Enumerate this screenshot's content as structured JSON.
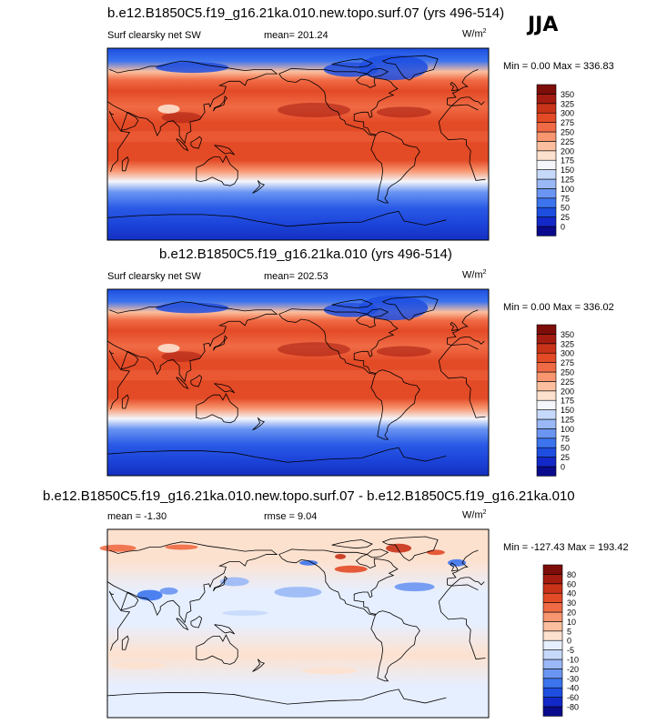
{
  "season": "JJA",
  "panels": [
    {
      "title": "b.e12.B1850C5.f19_g16.21ka.010.new.topo.surf.07 (yrs 496-514)",
      "left_label": "Surf clearsky net SW",
      "center_label": "mean= 201.24",
      "units": "W/m",
      "units_exp": "2",
      "minmax": "Min =   0.00 Max = 336.83"
    },
    {
      "title": "b.e12.B1850C5.f19_g16.21ka.010 (yrs 496-514)",
      "left_label": "Surf clearsky net SW",
      "center_label": "mean= 202.53",
      "units": "W/m",
      "units_exp": "2",
      "minmax": "Min =   0.00 Max = 336.02"
    },
    {
      "title": "b.e12.B1850C5.f19_g16.21ka.010.new.topo.surf.07 - b.e12.B1850C5.f19_g16.21ka.010",
      "left_label": "mean =  -1.30",
      "center_label": "rmse =   9.04",
      "units": "W/m",
      "units_exp": "2",
      "minmax": "Min = -127.43 Max = 193.42"
    }
  ],
  "chart_data": [
    {
      "type": "heatmap",
      "title": "b.e12.B1850C5.f19_g16.21ka.010.new.topo.surf.07 (yrs 496-514)",
      "variable": "Surf clearsky net SW",
      "units": "W/m2",
      "mean": 201.24,
      "min": 0.0,
      "max": 336.83,
      "colorbar_levels": [
        0,
        25,
        50,
        75,
        100,
        125,
        150,
        175,
        200,
        225,
        250,
        275,
        300,
        325,
        350
      ],
      "colorbar_colors": [
        "#0a0a8c",
        "#1328c8",
        "#1d4ee0",
        "#3c74ee",
        "#6a95f2",
        "#9ab8f6",
        "#c6d9fb",
        "#f4f6fb",
        "#fde1cf",
        "#fbbf9f",
        "#f7966f",
        "#f06b45",
        "#e34a26",
        "#c93318",
        "#a41c10",
        "#7d0d08"
      ],
      "gradient_lat": [
        -90,
        -75,
        -60,
        -45,
        -35,
        -25,
        -15,
        0,
        20,
        35,
        50,
        60,
        68,
        78,
        90
      ],
      "gradient_colors": [
        "#1330c0",
        "#1c44da",
        "#2a5ae6",
        "#6a95f2",
        "#f4f6fb",
        "#f7966f",
        "#e34a26",
        "#e34a26",
        "#e34a26",
        "#f06b45",
        "#e34a26",
        "#f06b45",
        "#fbbf9f",
        "#3c74ee",
        "#1d4ee0"
      ]
    },
    {
      "type": "heatmap",
      "title": "b.e12.B1850C5.f19_g16.21ka.010 (yrs 496-514)",
      "variable": "Surf clearsky net SW",
      "units": "W/m2",
      "mean": 202.53,
      "min": 0.0,
      "max": 336.02,
      "colorbar_levels": [
        0,
        25,
        50,
        75,
        100,
        125,
        150,
        175,
        200,
        225,
        250,
        275,
        300,
        325,
        350
      ],
      "colorbar_colors": [
        "#0a0a8c",
        "#1328c8",
        "#1d4ee0",
        "#3c74ee",
        "#6a95f2",
        "#9ab8f6",
        "#c6d9fb",
        "#f4f6fb",
        "#fde1cf",
        "#fbbf9f",
        "#f7966f",
        "#f06b45",
        "#e34a26",
        "#c93318",
        "#a41c10",
        "#7d0d08"
      ],
      "gradient_lat": [
        -90,
        -75,
        -60,
        -45,
        -35,
        -25,
        -15,
        0,
        20,
        35,
        50,
        60,
        68,
        78,
        90
      ],
      "gradient_colors": [
        "#1330c0",
        "#1c44da",
        "#2a5ae6",
        "#6a95f2",
        "#f4f6fb",
        "#f7966f",
        "#e34a26",
        "#e34a26",
        "#e34a26",
        "#f06b45",
        "#e34a26",
        "#f06b45",
        "#fbbf9f",
        "#3c74ee",
        "#1d4ee0"
      ]
    },
    {
      "type": "heatmap",
      "title": "b.e12.B1850C5.f19_g16.21ka.010.new.topo.surf.07 - b.e12.B1850C5.f19_g16.21ka.010",
      "units": "W/m2",
      "mean": -1.3,
      "rmse": 9.04,
      "min": -127.43,
      "max": 193.42,
      "colorbar_levels": [
        -80,
        -60,
        -40,
        -30,
        -20,
        -10,
        -5,
        0,
        5,
        10,
        20,
        30,
        40,
        60,
        80
      ],
      "colorbar_colors": [
        "#0a0a8c",
        "#1328c8",
        "#1d4ee0",
        "#3c74ee",
        "#6a95f2",
        "#9ab8f6",
        "#c6d9fb",
        "#e6efff",
        "#fde1cf",
        "#fbbf9f",
        "#f7966f",
        "#f06b45",
        "#e34a26",
        "#c93318",
        "#a41c10",
        "#7d0d08"
      ],
      "gradient_lat": [
        -90,
        -60,
        -30,
        0,
        30,
        60,
        90
      ],
      "gradient_colors": [
        "#e6efff",
        "#e6efff",
        "#fde1cf",
        "#e6efff",
        "#e6efff",
        "#fde1cf",
        "#fde1cf"
      ]
    }
  ]
}
